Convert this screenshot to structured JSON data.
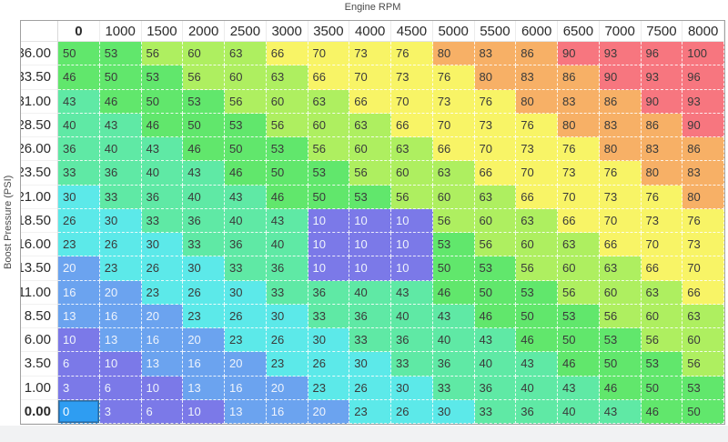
{
  "axes": {
    "x_title": "Engine RPM",
    "y_title": "Boost Pressure (PSI)"
  },
  "table": {
    "rpm_headers": [
      "0",
      "1000",
      "1500",
      "2000",
      "2500",
      "3000",
      "3500",
      "4000",
      "4500",
      "5000",
      "5500",
      "6000",
      "6500",
      "7000",
      "7500",
      "8000"
    ],
    "boost_headers": [
      "36.00",
      "33.50",
      "31.00",
      "28.50",
      "26.00",
      "23.50",
      "21.00",
      "18.50",
      "16.00",
      "13.50",
      "11.00",
      "8.50",
      "6.00",
      "3.50",
      "1.00",
      "0.00"
    ],
    "values": [
      [
        50,
        53,
        56,
        60,
        63,
        66,
        70,
        73,
        76,
        80,
        83,
        86,
        90,
        93,
        96,
        100
      ],
      [
        46,
        50,
        53,
        56,
        60,
        63,
        66,
        70,
        73,
        76,
        80,
        83,
        86,
        90,
        93,
        96
      ],
      [
        43,
        46,
        50,
        53,
        56,
        60,
        63,
        66,
        70,
        73,
        76,
        80,
        83,
        86,
        90,
        93
      ],
      [
        40,
        43,
        46,
        50,
        53,
        56,
        60,
        63,
        66,
        70,
        73,
        76,
        80,
        83,
        86,
        90
      ],
      [
        36,
        40,
        43,
        46,
        50,
        53,
        56,
        60,
        63,
        66,
        70,
        73,
        76,
        80,
        83,
        86
      ],
      [
        33,
        36,
        40,
        43,
        46,
        50,
        53,
        56,
        60,
        63,
        66,
        70,
        73,
        76,
        80,
        83
      ],
      [
        30,
        33,
        36,
        40,
        43,
        46,
        50,
        53,
        56,
        60,
        63,
        66,
        70,
        73,
        76,
        80
      ],
      [
        26,
        30,
        33,
        36,
        40,
        43,
        10,
        10,
        10,
        56,
        60,
        63,
        66,
        70,
        73,
        76
      ],
      [
        23,
        26,
        30,
        33,
        36,
        40,
        10,
        10,
        10,
        53,
        56,
        60,
        63,
        66,
        70,
        73
      ],
      [
        20,
        23,
        26,
        30,
        33,
        36,
        10,
        10,
        10,
        50,
        53,
        56,
        60,
        63,
        66,
        70
      ],
      [
        16,
        20,
        23,
        26,
        30,
        33,
        36,
        40,
        43,
        46,
        50,
        53,
        56,
        60,
        63,
        66
      ],
      [
        13,
        16,
        20,
        23,
        26,
        30,
        33,
        36,
        40,
        43,
        46,
        50,
        53,
        56,
        60,
        63
      ],
      [
        10,
        13,
        16,
        20,
        23,
        26,
        30,
        33,
        36,
        40,
        43,
        46,
        50,
        53,
        56,
        60
      ],
      [
        6,
        10,
        13,
        16,
        20,
        23,
        26,
        30,
        33,
        36,
        40,
        43,
        46,
        50,
        53,
        56
      ],
      [
        3,
        6,
        10,
        13,
        16,
        20,
        23,
        26,
        30,
        33,
        36,
        40,
        43,
        46,
        50,
        53
      ],
      [
        0,
        3,
        6,
        10,
        13,
        16,
        20,
        23,
        26,
        30,
        33,
        36,
        40,
        43,
        46,
        50
      ]
    ],
    "selected_cell": {
      "row_index": 15,
      "col_index": 0,
      "row_label": "0.00",
      "col_label": "0",
      "value": 0
    }
  },
  "colors": {
    "scale": [
      {
        "min": 0,
        "max": 12,
        "bg": "#7b79e8",
        "text": "#eef3fc"
      },
      {
        "min": 13,
        "max": 21,
        "bg": "#6ba3ef",
        "text": "#eef3fc"
      },
      {
        "min": 22,
        "max": 31,
        "bg": "#5ce9e9",
        "text": "#3a3a3a"
      },
      {
        "min": 32,
        "max": 44,
        "bg": "#5fe9a5",
        "text": "#3a3a3a"
      },
      {
        "min": 45,
        "max": 54,
        "bg": "#61e76c",
        "text": "#3a3a3a"
      },
      {
        "min": 55,
        "max": 64,
        "bg": "#aeef60",
        "text": "#3a3a3a"
      },
      {
        "min": 65,
        "max": 78,
        "bg": "#f8f466",
        "text": "#3a3a3a"
      },
      {
        "min": 79,
        "max": 88,
        "bg": "#f7b066",
        "text": "#3a3a3a"
      },
      {
        "min": 89,
        "max": 100,
        "bg": "#f7767f",
        "text": "#3a3a3a"
      }
    ],
    "selected_bg": "#2e9df2",
    "selected_text": "#ffffff",
    "selected_border": "#3a6a94",
    "grid_line": "#ffffff",
    "outer_border": "#a0a0a0"
  }
}
